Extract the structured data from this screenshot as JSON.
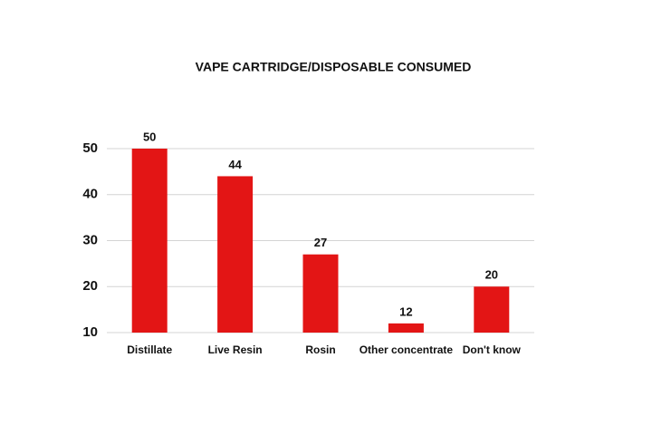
{
  "chart_data": {
    "type": "bar",
    "title": "VAPE CARTRIDGE/DISPOSABLE CONSUMED",
    "categories": [
      "Distillate",
      "Live Resin",
      "Rosin",
      "Other concentrate",
      "Don't know"
    ],
    "values": [
      50,
      44,
      27,
      12,
      20
    ],
    "color": "#e31515",
    "ylim": [
      10,
      50
    ],
    "yticks": [
      10,
      20,
      30,
      40,
      50
    ],
    "grid": true
  }
}
